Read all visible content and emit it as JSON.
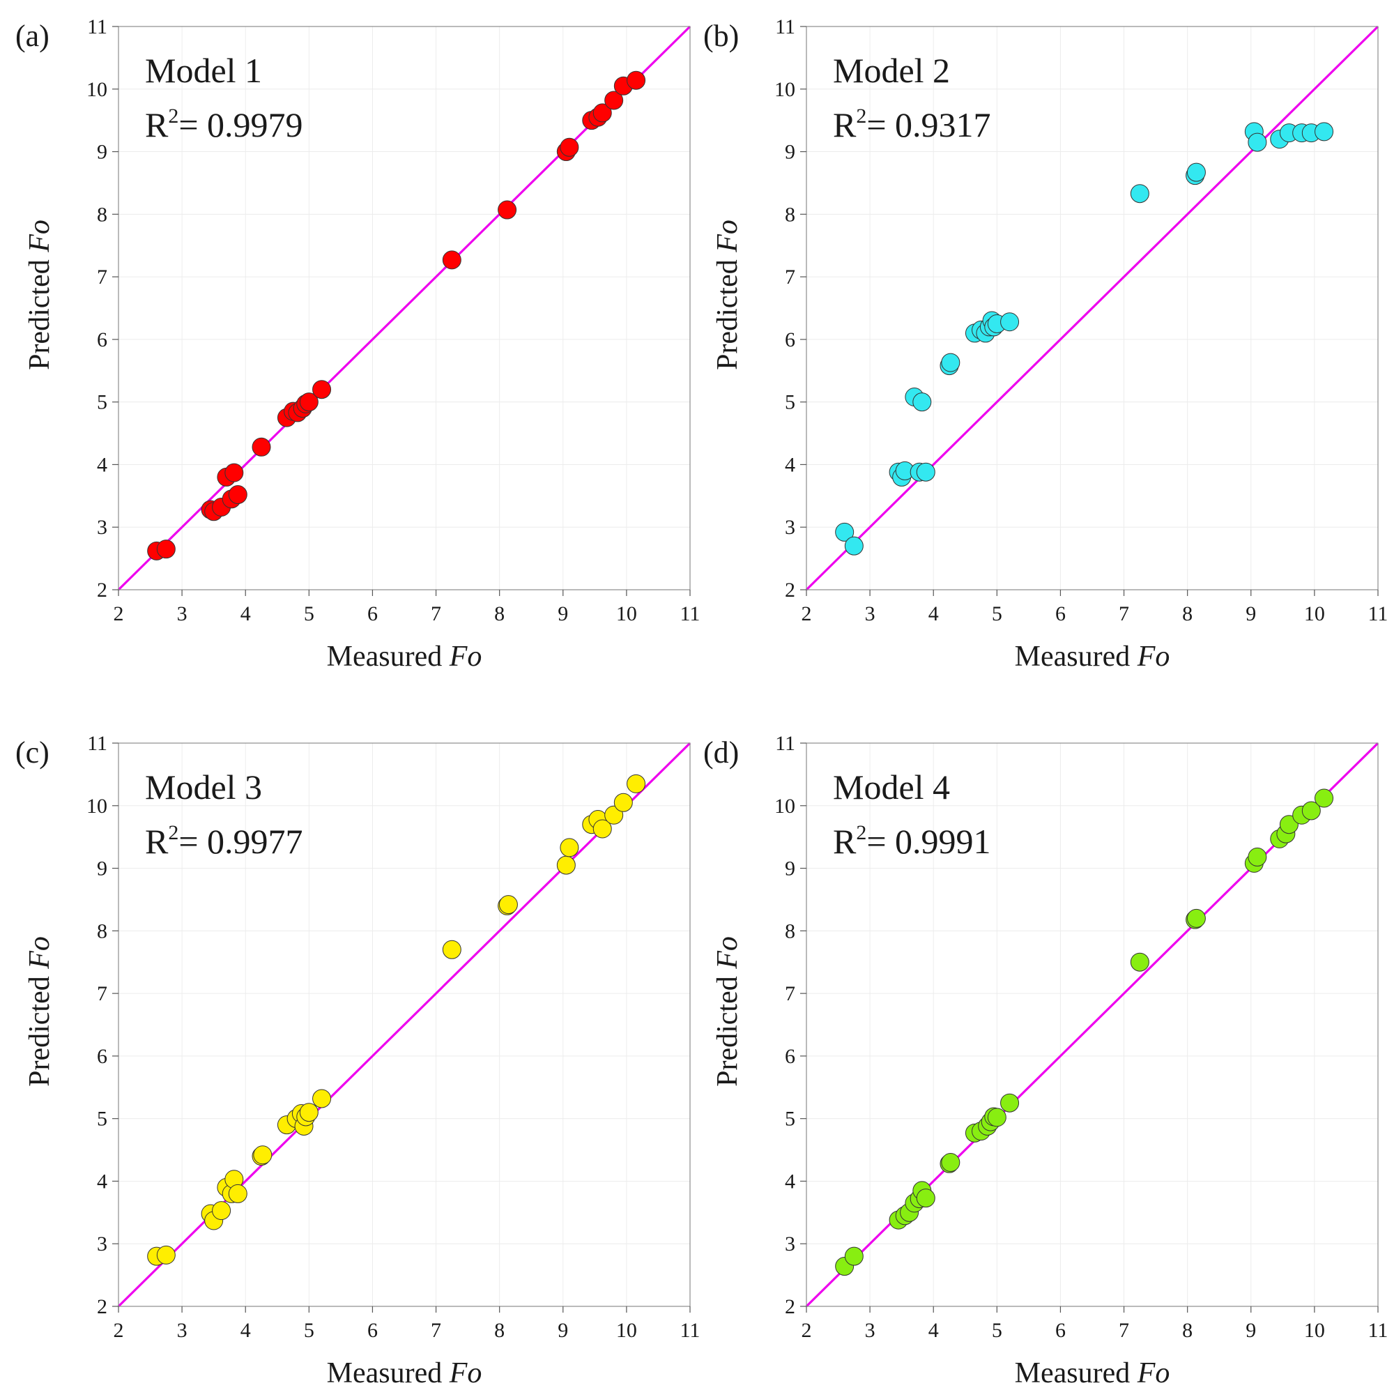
{
  "figure": {
    "axis_color": "#8c8c8c",
    "grid_color": "#ececec",
    "identity_line_color": "#ee00ee"
  },
  "chart_data": [
    {
      "type": "scatter",
      "panel": "(a)",
      "model": "Model 1",
      "r2_prefix": "R",
      "r2_sup": "2",
      "r2_value": "= 0.9979",
      "xlabel": "Measured",
      "xlabel_italic": "Fo",
      "ylabel": "Predicted",
      "ylabel_italic": "Fo",
      "xlim": [
        2,
        11
      ],
      "ylim": [
        2,
        11
      ],
      "ticks": [
        2,
        3,
        4,
        5,
        6,
        7,
        8,
        9,
        10,
        11
      ],
      "grid": true,
      "identity_line": true,
      "color": "#ff0000",
      "x": [
        2.6,
        2.75,
        3.45,
        3.5,
        3.62,
        3.7,
        3.78,
        3.82,
        3.88,
        4.25,
        4.65,
        4.75,
        4.82,
        4.9,
        4.95,
        5.0,
        5.2,
        7.25,
        8.12,
        9.05,
        9.1,
        9.45,
        9.55,
        9.62,
        9.8,
        9.95,
        10.15
      ],
      "y": [
        2.62,
        2.65,
        3.28,
        3.25,
        3.32,
        3.8,
        3.45,
        3.87,
        3.52,
        4.28,
        4.75,
        4.85,
        4.83,
        4.9,
        4.97,
        5.0,
        5.2,
        7.27,
        8.07,
        9.0,
        9.07,
        9.5,
        9.55,
        9.62,
        9.82,
        10.05,
        10.14
      ]
    },
    {
      "type": "scatter",
      "panel": "(b)",
      "model": "Model 2",
      "r2_prefix": "R",
      "r2_sup": "2",
      "r2_value": "= 0.9317",
      "xlabel": "Measured",
      "xlabel_italic": "Fo",
      "ylabel": "Predicted",
      "ylabel_italic": "Fo",
      "xlim": [
        2,
        11
      ],
      "ylim": [
        2,
        11
      ],
      "ticks": [
        2,
        3,
        4,
        5,
        6,
        7,
        8,
        9,
        10,
        11
      ],
      "grid": true,
      "identity_line": true,
      "color": "#33e8f0",
      "x": [
        2.6,
        2.75,
        3.45,
        3.5,
        3.55,
        3.7,
        3.78,
        3.82,
        3.88,
        4.25,
        4.27,
        4.65,
        4.75,
        4.82,
        4.88,
        4.92,
        4.95,
        5.0,
        5.2,
        7.25,
        8.12,
        8.14,
        9.05,
        9.1,
        9.45,
        9.6,
        9.8,
        9.95,
        10.15
      ],
      "y": [
        2.92,
        2.7,
        3.88,
        3.8,
        3.9,
        5.08,
        3.88,
        5.0,
        3.88,
        5.58,
        5.63,
        6.1,
        6.15,
        6.1,
        6.2,
        6.3,
        6.2,
        6.25,
        6.28,
        8.33,
        8.62,
        8.67,
        9.32,
        9.15,
        9.2,
        9.3,
        9.3,
        9.3,
        9.32
      ]
    },
    {
      "type": "scatter",
      "panel": "(c)",
      "model": "Model 3",
      "r2_prefix": "R",
      "r2_sup": "2",
      "r2_value": "= 0.9977",
      "xlabel": "Measured",
      "xlabel_italic": "Fo",
      "ylabel": "Predicted",
      "ylabel_italic": "Fo",
      "xlim": [
        2,
        11
      ],
      "ylim": [
        2,
        11
      ],
      "ticks": [
        2,
        3,
        4,
        5,
        6,
        7,
        8,
        9,
        10,
        11
      ],
      "grid": true,
      "identity_line": true,
      "color": "#ffee00",
      "x": [
        2.6,
        2.75,
        3.45,
        3.5,
        3.62,
        3.7,
        3.78,
        3.82,
        3.88,
        4.25,
        4.27,
        4.65,
        4.8,
        4.88,
        4.92,
        4.95,
        5.0,
        5.2,
        7.25,
        8.12,
        8.14,
        9.05,
        9.1,
        9.45,
        9.55,
        9.62,
        9.8,
        9.95,
        10.15
      ],
      "y": [
        2.8,
        2.82,
        3.48,
        3.37,
        3.53,
        3.9,
        3.8,
        4.03,
        3.8,
        4.4,
        4.42,
        4.9,
        5.0,
        5.08,
        4.88,
        5.03,
        5.1,
        5.32,
        7.7,
        8.4,
        8.42,
        9.05,
        9.33,
        9.7,
        9.78,
        9.63,
        9.85,
        10.05,
        10.35
      ]
    },
    {
      "type": "scatter",
      "panel": "(d)",
      "model": "Model 4",
      "r2_prefix": "R",
      "r2_sup": "2",
      "r2_value": "= 0.9991",
      "xlabel": "Measured",
      "xlabel_italic": "Fo",
      "ylabel": "Predicted",
      "ylabel_italic": "Fo",
      "xlim": [
        2,
        11
      ],
      "ylim": [
        2,
        11
      ],
      "ticks": [
        2,
        3,
        4,
        5,
        6,
        7,
        8,
        9,
        10,
        11
      ],
      "grid": true,
      "identity_line": true,
      "color": "#88ee11",
      "x": [
        2.6,
        2.75,
        3.45,
        3.55,
        3.62,
        3.7,
        3.78,
        3.82,
        3.88,
        4.25,
        4.27,
        4.65,
        4.75,
        4.85,
        4.9,
        4.95,
        5.0,
        5.2,
        7.25,
        8.12,
        8.14,
        9.05,
        9.1,
        9.45,
        9.55,
        9.6,
        9.8,
        9.95,
        10.15
      ],
      "y": [
        2.64,
        2.8,
        3.38,
        3.45,
        3.5,
        3.65,
        3.72,
        3.85,
        3.73,
        4.28,
        4.3,
        4.77,
        4.8,
        4.88,
        4.95,
        5.03,
        5.02,
        5.25,
        7.5,
        8.18,
        8.2,
        9.08,
        9.18,
        9.47,
        9.55,
        9.7,
        9.85,
        9.92,
        10.12
      ]
    }
  ]
}
